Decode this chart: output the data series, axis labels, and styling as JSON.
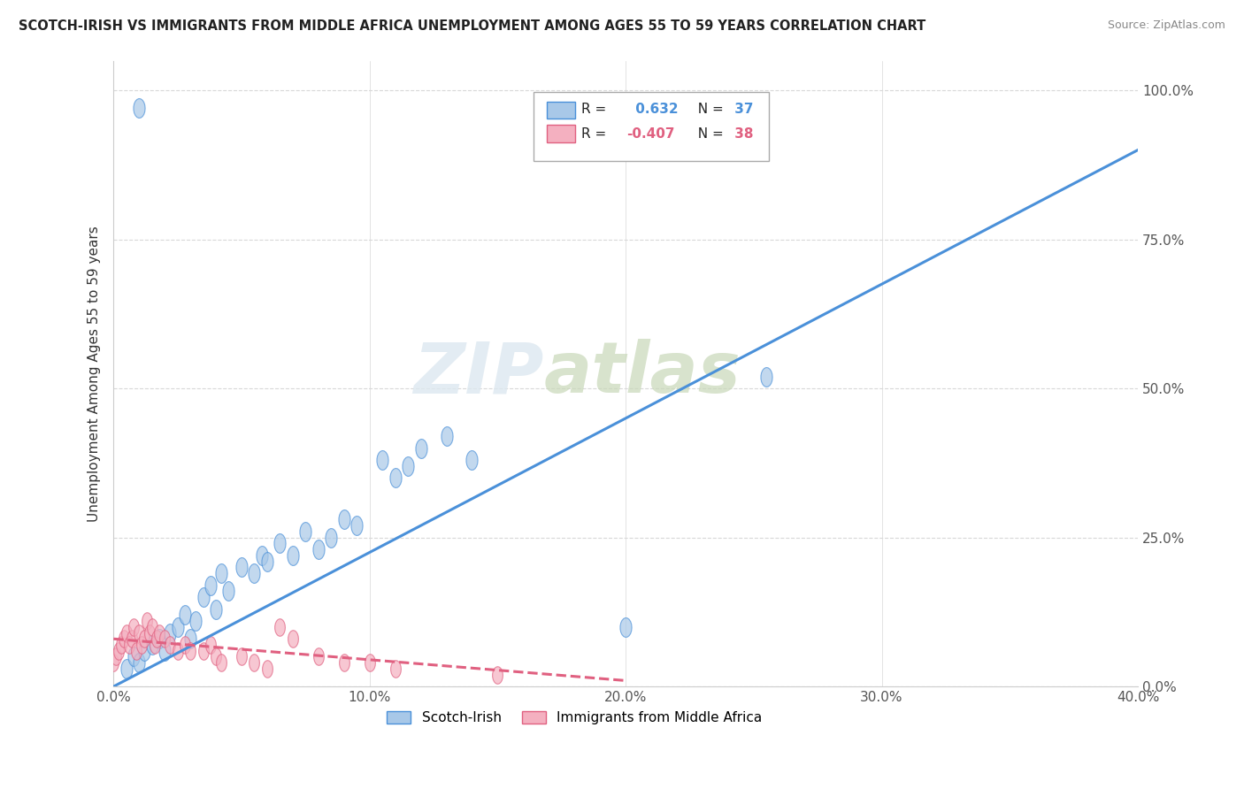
{
  "title": "SCOTCH-IRISH VS IMMIGRANTS FROM MIDDLE AFRICA UNEMPLOYMENT AMONG AGES 55 TO 59 YEARS CORRELATION CHART",
  "source": "Source: ZipAtlas.com",
  "ylabel_label": "Unemployment Among Ages 55 to 59 years",
  "scotch_irish_R": 0.632,
  "scotch_irish_N": 37,
  "middle_africa_R": -0.407,
  "middle_africa_N": 38,
  "scotch_irish_color": "#a8c8e8",
  "middle_africa_color": "#f4b0c0",
  "scotch_irish_line_color": "#4a90d9",
  "middle_africa_line_color": "#e06080",
  "scotch_irish_scatter": [
    [
      0.005,
      0.03
    ],
    [
      0.008,
      0.05
    ],
    [
      0.01,
      0.04
    ],
    [
      0.012,
      0.06
    ],
    [
      0.015,
      0.07
    ],
    [
      0.018,
      0.08
    ],
    [
      0.02,
      0.06
    ],
    [
      0.022,
      0.09
    ],
    [
      0.025,
      0.1
    ],
    [
      0.028,
      0.12
    ],
    [
      0.03,
      0.08
    ],
    [
      0.032,
      0.11
    ],
    [
      0.035,
      0.15
    ],
    [
      0.038,
      0.17
    ],
    [
      0.04,
      0.13
    ],
    [
      0.042,
      0.19
    ],
    [
      0.045,
      0.16
    ],
    [
      0.05,
      0.2
    ],
    [
      0.055,
      0.19
    ],
    [
      0.058,
      0.22
    ],
    [
      0.06,
      0.21
    ],
    [
      0.065,
      0.24
    ],
    [
      0.07,
      0.22
    ],
    [
      0.075,
      0.26
    ],
    [
      0.08,
      0.23
    ],
    [
      0.085,
      0.25
    ],
    [
      0.09,
      0.28
    ],
    [
      0.095,
      0.27
    ],
    [
      0.105,
      0.38
    ],
    [
      0.11,
      0.35
    ],
    [
      0.115,
      0.37
    ],
    [
      0.12,
      0.4
    ],
    [
      0.13,
      0.42
    ],
    [
      0.14,
      0.38
    ],
    [
      0.01,
      0.97
    ],
    [
      0.255,
      0.52
    ],
    [
      0.2,
      0.1
    ]
  ],
  "middle_africa_scatter": [
    [
      0.0,
      0.04
    ],
    [
      0.001,
      0.05
    ],
    [
      0.002,
      0.06
    ],
    [
      0.003,
      0.07
    ],
    [
      0.004,
      0.08
    ],
    [
      0.005,
      0.09
    ],
    [
      0.006,
      0.07
    ],
    [
      0.007,
      0.08
    ],
    [
      0.008,
      0.1
    ],
    [
      0.009,
      0.06
    ],
    [
      0.01,
      0.09
    ],
    [
      0.011,
      0.07
    ],
    [
      0.012,
      0.08
    ],
    [
      0.013,
      0.11
    ],
    [
      0.014,
      0.09
    ],
    [
      0.015,
      0.1
    ],
    [
      0.016,
      0.07
    ],
    [
      0.017,
      0.08
    ],
    [
      0.018,
      0.09
    ],
    [
      0.02,
      0.08
    ],
    [
      0.022,
      0.07
    ],
    [
      0.025,
      0.06
    ],
    [
      0.028,
      0.07
    ],
    [
      0.03,
      0.06
    ],
    [
      0.035,
      0.06
    ],
    [
      0.038,
      0.07
    ],
    [
      0.04,
      0.05
    ],
    [
      0.042,
      0.04
    ],
    [
      0.05,
      0.05
    ],
    [
      0.055,
      0.04
    ],
    [
      0.06,
      0.03
    ],
    [
      0.1,
      0.04
    ],
    [
      0.11,
      0.03
    ],
    [
      0.065,
      0.1
    ],
    [
      0.07,
      0.08
    ],
    [
      0.08,
      0.05
    ],
    [
      0.09,
      0.04
    ],
    [
      0.15,
      0.02
    ]
  ],
  "watermark_zip": "ZIP",
  "watermark_atlas": "atlas",
  "background_color": "#ffffff",
  "grid_color": "#d8d8d8",
  "xlim": [
    0.0,
    0.4
  ],
  "ylim": [
    0.0,
    1.05
  ],
  "si_trend_x": [
    0.0,
    0.4
  ],
  "si_trend_y": [
    0.0,
    0.9
  ],
  "ma_trend_x": [
    0.0,
    0.2
  ],
  "ma_trend_y": [
    0.08,
    0.01
  ]
}
